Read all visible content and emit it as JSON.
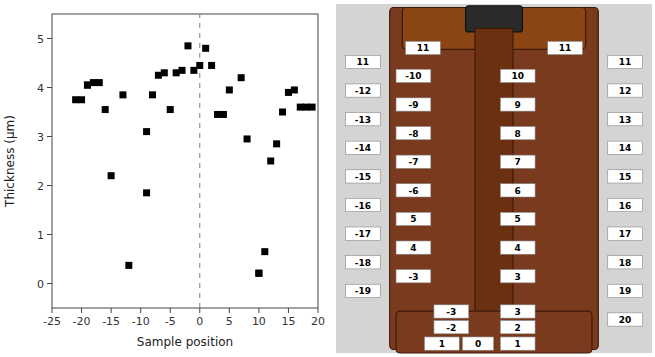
{
  "chart_data": {
    "type": "scatter",
    "x": [
      -21,
      -20,
      -19,
      -19,
      -18,
      -17,
      -16,
      -15,
      -13,
      -12,
      -9,
      -9,
      -8,
      -7,
      -6,
      -5,
      -4,
      -3,
      -2,
      -1,
      0,
      1,
      2,
      3,
      4,
      5,
      7,
      8,
      10,
      10,
      11,
      12,
      13,
      14,
      15,
      16,
      17,
      18,
      19
    ],
    "y": [
      3.75,
      3.75,
      4.05,
      4.05,
      4.1,
      4.1,
      3.55,
      2.2,
      3.85,
      0.37,
      3.1,
      1.85,
      3.85,
      4.25,
      4.3,
      3.55,
      4.3,
      4.35,
      4.85,
      4.35,
      4.45,
      4.8,
      4.45,
      3.45,
      3.45,
      3.95,
      4.2,
      2.95,
      0.21,
      0.21,
      0.65,
      2.5,
      2.85,
      3.5,
      3.9,
      3.95,
      3.6,
      3.6,
      3.6
    ],
    "xlim": [
      -25,
      20
    ],
    "ylim": [
      -0.5,
      5.5
    ],
    "xticks": [
      -25,
      -20,
      -15,
      -10,
      -5,
      0,
      5,
      10,
      15,
      20
    ],
    "yticks": [
      0,
      1,
      2,
      3,
      4,
      5
    ],
    "xlabel": "Sample position",
    "ylabel": "Thickness (μm)",
    "vline": 0,
    "color": "black",
    "marker": "square",
    "grid": false,
    "annotations": [
      "11",
      "-12",
      "-13",
      "-14",
      "-15",
      "-16",
      "-17",
      "-18",
      "-19",
      "-10",
      "-9",
      "-8",
      "-7",
      "-6",
      "5",
      "4",
      "-3",
      "10",
      "9",
      "8",
      "7",
      "6",
      "5",
      "4",
      "3",
      "11",
      "12",
      "13",
      "14",
      "15",
      "16",
      "17",
      "18",
      "19",
      "20",
      "11",
      "11",
      "-3",
      "3",
      "-2",
      "2",
      "1",
      "1",
      "0"
    ]
  }
}
